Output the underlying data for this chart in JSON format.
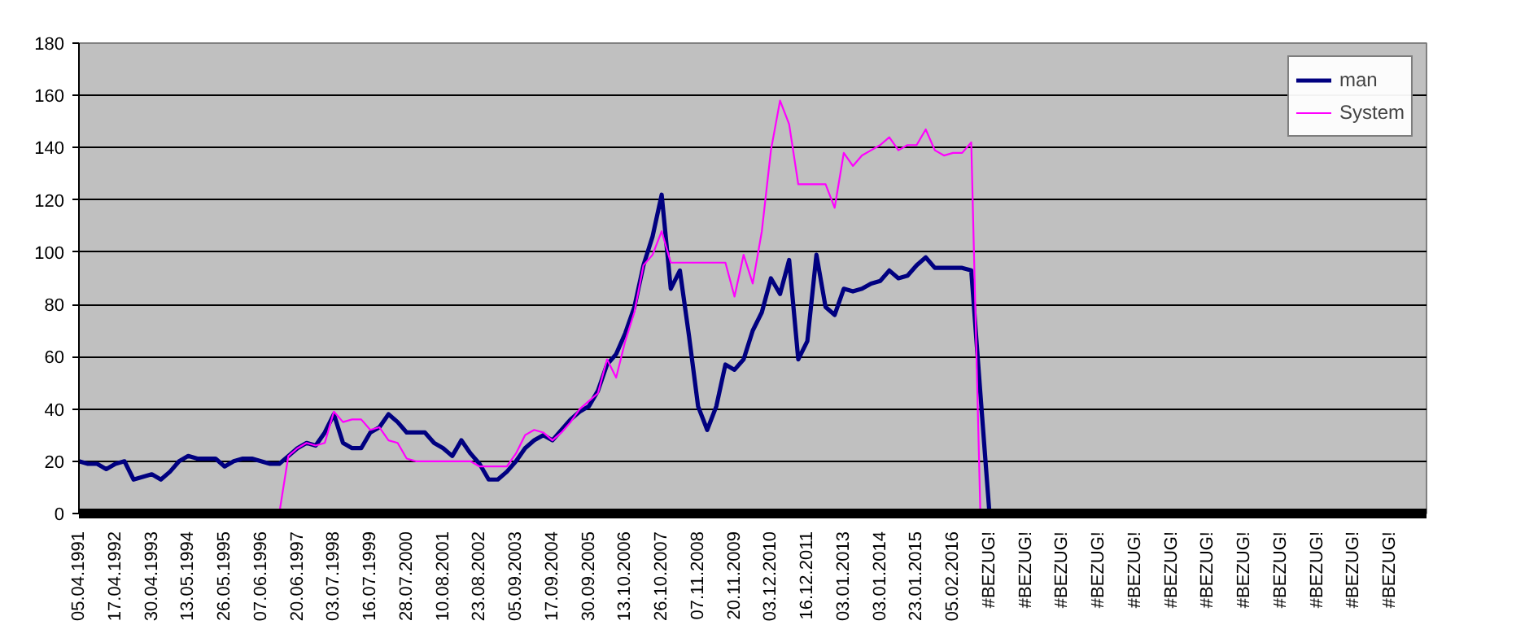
{
  "chart_data": {
    "type": "line",
    "categories": [
      "05.04.1991",
      null,
      null,
      null,
      "17.04.1992",
      null,
      null,
      null,
      "30.04.1993",
      null,
      null,
      null,
      "13.05.1994",
      null,
      null,
      null,
      "26.05.1995",
      null,
      null,
      null,
      "07.06.1996",
      null,
      null,
      null,
      "20.06.1997",
      null,
      null,
      null,
      "03.07.1998",
      null,
      null,
      null,
      "16.07.1999",
      null,
      null,
      null,
      "28.07.2000",
      null,
      null,
      null,
      "10.08.2001",
      null,
      null,
      null,
      "23.08.2002",
      null,
      null,
      null,
      "05.09.2003",
      null,
      null,
      null,
      "17.09.2004",
      null,
      null,
      null,
      "30.09.2005",
      null,
      null,
      null,
      "13.10.2006",
      null,
      null,
      null,
      "26.10.2007",
      null,
      null,
      null,
      "07.11.2008",
      null,
      null,
      null,
      "20.11.2009",
      null,
      null,
      null,
      "03.12.2010",
      null,
      null,
      null,
      "16.12.2011",
      null,
      null,
      null,
      "03.01.2013",
      null,
      null,
      null,
      "03.01.2014",
      null,
      null,
      null,
      "23.01.2015",
      null,
      null,
      null,
      "05.02.2016",
      null,
      null,
      null,
      "#BEZUG!",
      null,
      null,
      null,
      "#BEZUG!",
      null,
      null,
      null,
      "#BEZUG!",
      null,
      null,
      null,
      "#BEZUG!",
      null,
      null,
      null,
      "#BEZUG!",
      null,
      null,
      null,
      "#BEZUG!",
      null,
      null,
      null,
      "#BEZUG!",
      null,
      null,
      null,
      "#BEZUG!",
      null,
      null,
      null,
      "#BEZUG!",
      null,
      null,
      null,
      "#BEZUG!",
      null,
      null,
      null,
      "#BEZUG!",
      null,
      null,
      null,
      "#BEZUG!",
      null,
      null,
      null
    ],
    "series": [
      {
        "name": "man",
        "color": "#000080",
        "values": [
          20,
          19,
          19,
          17,
          19,
          20,
          13,
          14,
          15,
          13,
          16,
          20,
          22,
          21,
          21,
          21,
          18,
          20,
          21,
          21,
          20,
          19,
          19,
          22,
          25,
          27,
          26,
          31,
          38,
          27,
          25,
          25,
          31,
          33,
          38,
          35,
          31,
          31,
          31,
          27,
          25,
          22,
          28,
          23,
          19,
          13,
          13,
          16,
          20,
          25,
          28,
          30,
          28,
          32,
          36,
          39,
          41,
          47,
          57,
          61,
          69,
          79,
          95,
          106,
          122,
          86,
          93,
          68,
          41,
          32,
          41,
          57,
          55,
          59,
          70,
          77,
          90,
          84,
          97,
          59,
          66,
          99,
          79,
          76,
          86,
          85,
          86,
          88,
          89,
          93,
          90,
          91,
          95,
          98,
          94,
          94,
          94,
          94,
          93,
          46,
          0,
          null,
          null,
          null,
          null,
          null,
          null,
          null,
          null,
          null,
          null,
          null,
          null,
          null,
          null,
          null,
          null,
          null,
          null,
          null,
          null,
          null,
          null,
          null,
          null,
          null,
          null,
          null,
          null,
          null,
          null,
          null,
          null,
          null,
          null,
          null,
          null,
          null,
          null,
          null,
          null,
          null,
          null,
          null,
          null,
          null,
          null,
          null
        ]
      },
      {
        "name": "System",
        "color": "#ff00ff",
        "values": [
          null,
          null,
          null,
          null,
          null,
          null,
          null,
          null,
          null,
          null,
          null,
          null,
          null,
          null,
          null,
          null,
          null,
          null,
          null,
          null,
          null,
          null,
          0,
          22,
          25,
          27,
          26,
          27,
          39,
          35,
          36,
          36,
          32,
          33,
          28,
          27,
          21,
          20,
          20,
          20,
          20,
          20,
          20,
          20,
          18,
          18,
          18,
          18,
          23,
          30,
          32,
          31,
          28,
          31,
          35,
          40,
          43,
          46,
          59,
          52,
          66,
          77,
          95,
          99,
          108,
          96,
          96,
          96,
          96,
          96,
          96,
          96,
          83,
          99,
          88,
          108,
          139,
          158,
          149,
          126,
          126,
          126,
          126,
          117,
          138,
          133,
          137,
          139,
          141,
          144,
          139,
          141,
          141,
          147,
          139,
          137,
          138,
          138,
          142,
          0,
          null,
          null,
          null,
          null,
          null,
          null,
          null,
          null,
          null,
          null,
          null,
          null,
          null,
          null,
          null,
          null,
          null,
          null,
          null,
          null,
          null,
          null,
          null,
          null,
          null,
          null,
          null,
          null,
          null,
          null,
          null,
          null,
          null,
          null,
          null,
          null,
          null,
          null,
          null,
          null,
          null,
          null,
          null,
          null,
          null,
          null,
          null,
          null
        ]
      }
    ],
    "ylim": [
      0,
      180
    ],
    "yticks": [
      0,
      20,
      40,
      60,
      80,
      100,
      120,
      140,
      160,
      180
    ],
    "grid": "y",
    "legend": "top right",
    "marker": "none",
    "line_style": "solid"
  }
}
